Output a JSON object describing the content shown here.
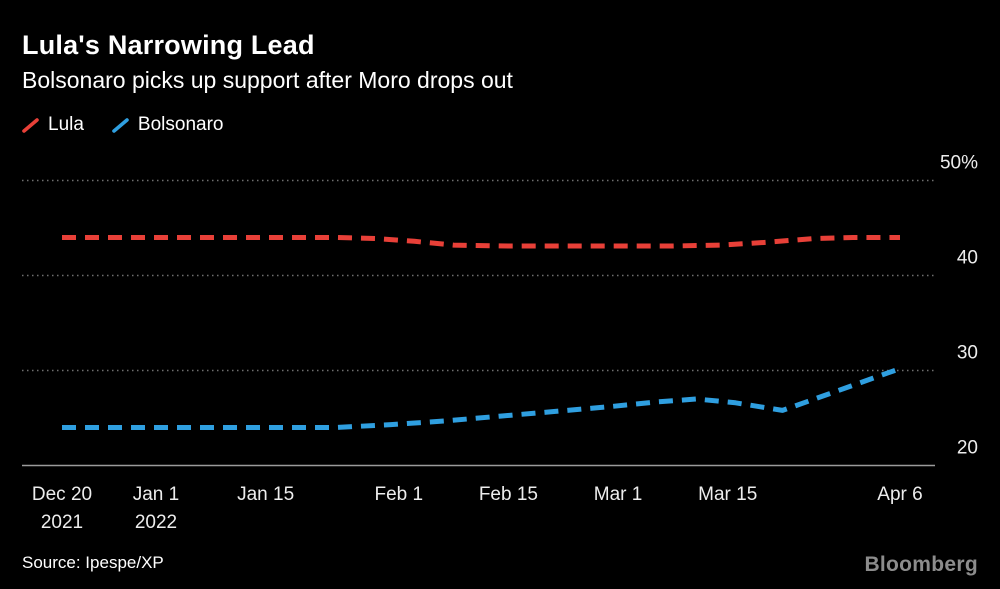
{
  "header": {
    "title": "Lula's Narrowing Lead",
    "subtitle": "Bolsonaro picks up support after Moro drops out"
  },
  "legend": [
    {
      "label": "Lula",
      "color": "#e84038"
    },
    {
      "label": "Bolsonaro",
      "color": "#2f9fe0"
    }
  ],
  "source": "Source: Ipespe/XP",
  "branding": "Bloomberg",
  "colors": {
    "background": "#000000",
    "text": "#ffffff",
    "axis_text": "#ededed",
    "gridline": "#6f6f6f",
    "baseline": "#9b9b9b",
    "lula_red": "#e84038",
    "bolsonaro_blue": "#2f9fe0"
  },
  "chart_data": {
    "type": "line",
    "title": "Lula's Narrowing Lead",
    "subtitle": "Bolsonaro picks up support after Moro drops out",
    "xlabel": "",
    "ylabel": "",
    "line_style": "dashed",
    "grid": "horizontal-dotted",
    "legend_position": "top-left",
    "x_axis": {
      "unit": "days since Dec 20 2021",
      "range_days": [
        0,
        107
      ],
      "ticks": [
        {
          "day": 0,
          "label": "Dec 20",
          "sublabel": "2021"
        },
        {
          "day": 12,
          "label": "Jan 1",
          "sublabel": "2022"
        },
        {
          "day": 26,
          "label": "Jan 15"
        },
        {
          "day": 43,
          "label": "Feb 1"
        },
        {
          "day": 57,
          "label": "Feb 15"
        },
        {
          "day": 71,
          "label": "Mar 1"
        },
        {
          "day": 85,
          "label": "Mar 15"
        },
        {
          "day": 107,
          "label": "Apr 6"
        }
      ]
    },
    "y_axis": {
      "unit": "percent",
      "ylim": [
        20,
        52
      ],
      "ticks": [
        {
          "value": 50,
          "label": "50%"
        },
        {
          "value": 40,
          "label": "40"
        },
        {
          "value": 30,
          "label": "30"
        },
        {
          "value": 20,
          "label": "20"
        }
      ]
    },
    "series": [
      {
        "name": "Lula",
        "color": "#e84038",
        "style": "dashed",
        "points": [
          [
            0,
            44
          ],
          [
            7,
            44
          ],
          [
            14,
            44
          ],
          [
            21,
            44
          ],
          [
            28,
            44
          ],
          [
            35,
            44
          ],
          [
            40,
            43.9
          ],
          [
            45,
            43.6
          ],
          [
            50,
            43.2
          ],
          [
            57,
            43.1
          ],
          [
            64,
            43.1
          ],
          [
            71,
            43.1
          ],
          [
            78,
            43.1
          ],
          [
            84,
            43.2
          ],
          [
            90,
            43.5
          ],
          [
            96,
            43.9
          ],
          [
            101,
            44
          ],
          [
            107,
            44
          ]
        ]
      },
      {
        "name": "Bolsonaro",
        "color": "#2f9fe0",
        "style": "dashed",
        "points": [
          [
            0,
            24
          ],
          [
            7,
            24
          ],
          [
            14,
            24
          ],
          [
            21,
            24
          ],
          [
            28,
            24
          ],
          [
            35,
            24
          ],
          [
            42,
            24.3
          ],
          [
            49,
            24.7
          ],
          [
            56,
            25.2
          ],
          [
            63,
            25.7
          ],
          [
            70,
            26.2
          ],
          [
            76,
            26.7
          ],
          [
            81,
            27
          ],
          [
            86,
            26.6
          ],
          [
            92,
            25.8
          ],
          [
            107,
            30.2
          ]
        ]
      }
    ]
  }
}
